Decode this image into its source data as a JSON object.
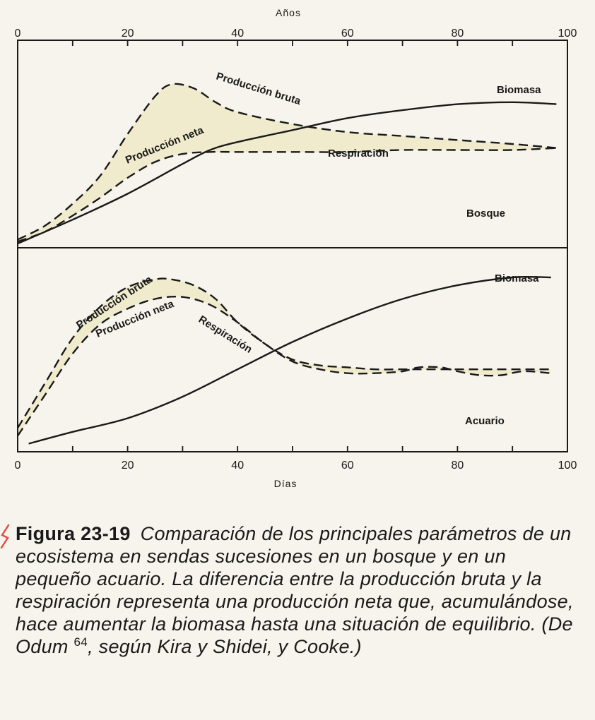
{
  "chart_data": [
    {
      "type": "line",
      "panel": "Bosque",
      "x_axis_label_top": "Años",
      "xlim": [
        0,
        100
      ],
      "ticks": [
        0,
        20,
        40,
        60,
        80,
        100
      ],
      "tick_labels": [
        "0",
        "20",
        "40",
        "60",
        "80",
        "100"
      ],
      "shaded_region": "Producción neta (between Producción bruta and Respiración)",
      "series": [
        {
          "name": "Producción bruta",
          "style": "dashed",
          "x": [
            0,
            5,
            10,
            15,
            20,
            25,
            28,
            32,
            36,
            40,
            50,
            60,
            70,
            80,
            90,
            98
          ],
          "y": [
            2,
            9,
            20,
            34,
            55,
            74,
            80,
            78,
            71,
            66,
            60,
            56,
            54,
            52,
            50,
            48
          ]
        },
        {
          "name": "Respiración",
          "style": "dashed",
          "x": [
            0,
            5,
            10,
            15,
            20,
            25,
            30,
            35,
            40,
            50,
            60,
            70,
            80,
            90,
            98
          ],
          "y": [
            1,
            6,
            14,
            23,
            33,
            41,
            45,
            46,
            46,
            46,
            46,
            47,
            47,
            47,
            48
          ]
        },
        {
          "name": "Biomasa",
          "style": "solid",
          "x": [
            0,
            10,
            20,
            30,
            35,
            40,
            50,
            60,
            70,
            80,
            90,
            98
          ],
          "y": [
            0,
            12,
            25,
            40,
            47,
            51,
            57,
            63,
            67,
            70,
            71,
            70
          ]
        }
      ],
      "labels": [
        "Producción bruta",
        "Producción neta",
        "Respiración",
        "Biomasa",
        "Bosque"
      ]
    },
    {
      "type": "line",
      "panel": "Acuario",
      "xlabel": "Días",
      "xlim": [
        0,
        100
      ],
      "ticks": [
        0,
        20,
        40,
        60,
        80,
        100
      ],
      "tick_labels": [
        "0",
        "20",
        "40",
        "60",
        "80",
        "100"
      ],
      "shaded_region": "Producción neta (between Producción bruta and Respiración)",
      "series": [
        {
          "name": "Producción bruta",
          "style": "dashed",
          "x": [
            0,
            5,
            10,
            15,
            20,
            25,
            28,
            32,
            36,
            40,
            45,
            50,
            55,
            60,
            65,
            70,
            75,
            80,
            85,
            90,
            95,
            97
          ],
          "y": [
            10,
            33,
            56,
            72,
            82,
            86,
            86,
            83,
            76,
            64,
            53,
            45,
            42,
            41,
            40,
            40,
            40,
            40,
            40,
            40,
            40,
            40
          ]
        },
        {
          "name": "Respiración",
          "style": "dashed",
          "x": [
            0,
            5,
            10,
            15,
            20,
            25,
            30,
            35,
            40,
            45,
            50,
            55,
            60,
            65,
            70,
            73,
            77,
            80,
            84,
            88,
            92,
            97
          ],
          "y": [
            6,
            27,
            48,
            63,
            71,
            76,
            77,
            73,
            64,
            53,
            44,
            40,
            38,
            38,
            39,
            41,
            41,
            39,
            37,
            37,
            39,
            38
          ]
        },
        {
          "name": "Biomasa",
          "style": "solid",
          "x": [
            2,
            10,
            20,
            30,
            40,
            50,
            60,
            70,
            80,
            90,
            97
          ],
          "y": [
            2,
            8,
            15,
            26,
            40,
            54,
            66,
            76,
            83,
            87,
            87
          ]
        }
      ],
      "labels": [
        "Producción bruta",
        "Producción neta",
        "Respiración",
        "Biomasa",
        "Acuario"
      ]
    }
  ],
  "caption": {
    "figure_number": "Figura 23-19",
    "text_before_ref": "Comparación de los principales parámetros de un ecosistema en sendas sucesiones en un bosque y en un pequeño acuario. La diferencia entre la producción bruta y la respiración representa una producción neta que, acumulándose, hace aumentar la biomasa hasta una situación de equilibrio. (De Odum",
    "reference_superscript": "64",
    "text_after_ref": ", según Kira y Shidei, y Cooke.)"
  },
  "colors": {
    "ink": "#1a1a1a",
    "fill": "#f0ebcc",
    "paper": "#f6f4ec",
    "mark": "#e0504a"
  }
}
